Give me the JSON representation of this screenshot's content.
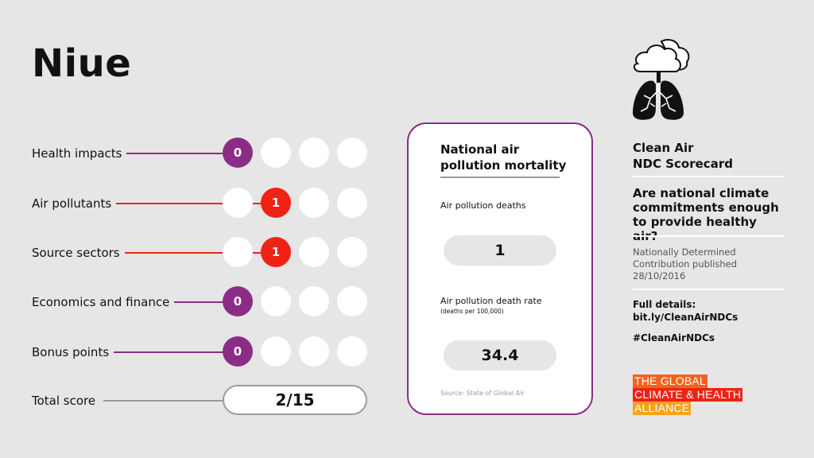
{
  "country": "Niue",
  "colors": {
    "background": "#e6e6e6",
    "purple": "#8b2d87",
    "red": "#ee2316",
    "empty_dot": "#ffffff",
    "total_line": "#999999",
    "logo_orange": "#f5621e",
    "logo_red": "#ee2316",
    "logo_amber": "#f7a31b"
  },
  "scores": [
    {
      "label": "Health impacts",
      "score": "0",
      "filled_index": 0,
      "color": "purple"
    },
    {
      "label": "Air pollutants",
      "score": "1",
      "filled_index": 1,
      "color": "red"
    },
    {
      "label": "Source sectors",
      "score": "1",
      "filled_index": 1,
      "color": "red"
    },
    {
      "label": "Economics and finance",
      "score": "0",
      "filled_index": 0,
      "color": "purple"
    },
    {
      "label": "Bonus points",
      "score": "0",
      "filled_index": 0,
      "color": "purple"
    }
  ],
  "total": {
    "label": "Total score",
    "value": "2/15"
  },
  "mortality_card": {
    "title": "National air pollution mortality",
    "deaths_label": "Air pollution deaths",
    "deaths_value": "1",
    "rate_label": "Air pollution death rate",
    "rate_sublabel": "(deaths per 100,000)",
    "rate_value": "34.4",
    "source": "Source: State of Global Air"
  },
  "sidebar": {
    "icon": "cloud-lungs-icon",
    "title_line1": "Clean Air",
    "title_line2": "NDC Scorecard",
    "question": "Are national climate commitments enough to provide healthy air?",
    "meta_line1": "Nationally Determined",
    "meta_line2": "Contribution published",
    "meta_line3": "28/10/2016",
    "details_label": "Full details:",
    "details_link": "bit.ly/CleanAirNDCs",
    "hashtag": "#CleanAirNDCs"
  },
  "logo": {
    "line1": "THE GLOBAL",
    "line2": "CLIMATE & HEALTH",
    "line3": "ALLIANCE"
  }
}
